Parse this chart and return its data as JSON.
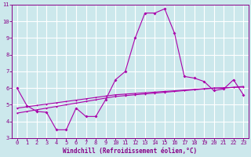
{
  "title": "",
  "xlabel": "Windchill (Refroidissement éolien,°C)",
  "ylabel": "",
  "bg_color": "#cce8ec",
  "line_color": "#aa00aa",
  "grid_color": "#ffffff",
  "ylim": [
    3,
    11
  ],
  "xlim": [
    -0.5,
    23.5
  ],
  "yticks": [
    3,
    4,
    5,
    6,
    7,
    8,
    9,
    10,
    11
  ],
  "xticks": [
    0,
    1,
    2,
    3,
    4,
    5,
    6,
    7,
    8,
    9,
    10,
    11,
    12,
    13,
    14,
    15,
    16,
    17,
    18,
    19,
    20,
    21,
    22,
    23
  ],
  "series_main": [
    6.0,
    4.95,
    4.6,
    4.55,
    3.5,
    3.5,
    4.8,
    4.3,
    4.3,
    5.3,
    6.5,
    7.0,
    9.0,
    10.5,
    10.5,
    10.75,
    9.3,
    6.7,
    6.6,
    6.4,
    5.85,
    5.95,
    6.5,
    5.6
  ],
  "series_line1": [
    4.5,
    4.6,
    4.7,
    4.8,
    4.9,
    5.0,
    5.1,
    5.2,
    5.3,
    5.4,
    5.5,
    5.55,
    5.6,
    5.65,
    5.7,
    5.75,
    5.8,
    5.85,
    5.9,
    5.95,
    6.0,
    6.0,
    6.05,
    6.1
  ],
  "series_line2": [
    4.8,
    4.88,
    4.96,
    5.04,
    5.12,
    5.2,
    5.28,
    5.36,
    5.44,
    5.52,
    5.6,
    5.64,
    5.68,
    5.72,
    5.76,
    5.8,
    5.84,
    5.88,
    5.92,
    5.96,
    6.0,
    6.02,
    6.04,
    6.06
  ],
  "tick_fontsize": 5,
  "xlabel_fontsize": 5.5
}
